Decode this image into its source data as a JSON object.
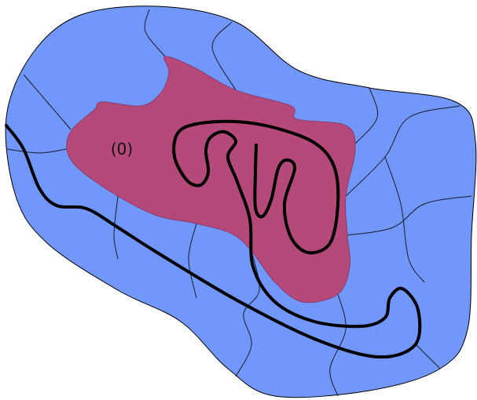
{
  "label": "(0)"
}
